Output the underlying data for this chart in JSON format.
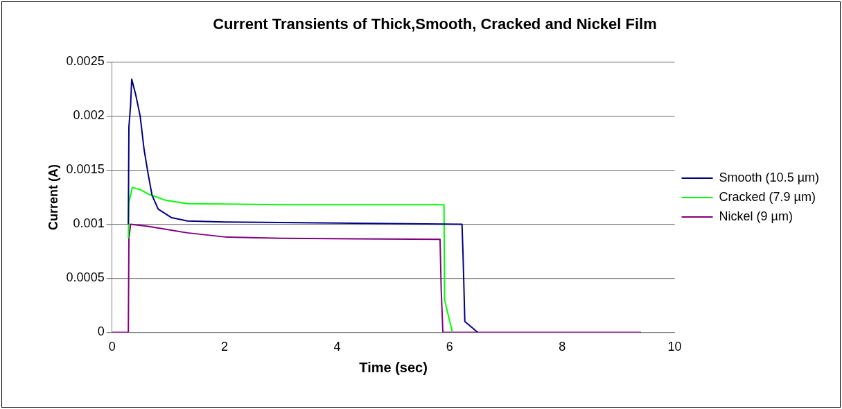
{
  "chart_data": {
    "type": "line",
    "title": "Current Transients of Thick,Smooth, Cracked and Nickel Film",
    "xlabel": "Time (sec)",
    "ylabel": "Current (A)",
    "xlim": [
      0,
      10
    ],
    "xticks": [
      0,
      2,
      4,
      6,
      8,
      10
    ],
    "ylim": [
      0,
      0.0025
    ],
    "yticks": [
      0,
      0.0005,
      0.001,
      0.0015,
      0.002,
      0.0025
    ],
    "grid": "y",
    "legend": "right",
    "marker": "none",
    "line_style": "solid",
    "series": [
      {
        "name": "Smooth (10.5 µm)",
        "color": "#000080",
        "x": [
          0.29,
          0.3,
          0.33,
          0.35,
          0.42,
          0.5,
          0.57,
          0.64,
          0.71,
          0.82,
          1.06,
          1.34,
          2,
          4,
          6.22,
          6.24,
          6.27,
          6.5
        ],
        "values": [
          0.001,
          0.0019,
          0.0021,
          0.00234,
          0.0022,
          0.002,
          0.00169,
          0.00147,
          0.00127,
          0.00114,
          0.00106,
          0.00103,
          0.00102,
          0.00101,
          0.001,
          0.00069,
          0.0001,
          0
        ]
      },
      {
        "name": "Cracked (7.9 µm)",
        "color": "#00ff00",
        "x": [
          0.29,
          0.3,
          0.36,
          0.5,
          0.64,
          0.96,
          1.34,
          3,
          5.9,
          5.91,
          6.05
        ],
        "values": [
          0.00087,
          0.0012,
          0.00134,
          0.00132,
          0.00128,
          0.00122,
          0.00119,
          0.00118,
          0.00118,
          0.0003,
          0
        ]
      },
      {
        "name": "Nickel (9 µm)",
        "color": "#800080",
        "x": [
          0,
          0.29,
          0.3,
          0.33,
          0.64,
          1.34,
          2.04,
          3,
          5.83,
          5.85,
          5.88,
          5.95,
          9.4
        ],
        "values": [
          0,
          0,
          0.00087,
          0.001,
          0.00098,
          0.00092,
          0.00088,
          0.00087,
          0.00086,
          0.0004,
          0,
          0,
          0
        ]
      }
    ]
  }
}
